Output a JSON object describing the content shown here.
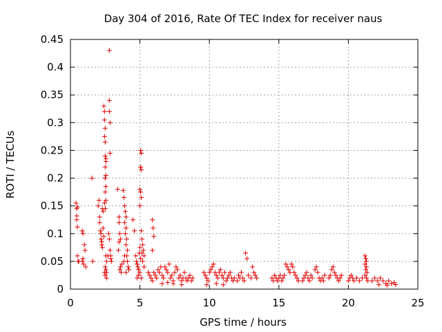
{
  "chart_data": {
    "type": "scatter",
    "title": "Day 304 of 2016, Rate Of TEC Index for receiver naus",
    "xlabel": "GPS time / hours",
    "ylabel": "ROTI / TECUs",
    "xlim": [
      0,
      25
    ],
    "ylim": [
      0,
      0.45
    ],
    "xticks": [
      0,
      5,
      10,
      15,
      20,
      25
    ],
    "yticks": [
      0,
      0.05,
      0.1,
      0.15,
      0.2,
      0.25,
      0.3,
      0.35,
      0.4,
      0.45
    ],
    "grid": true,
    "marker": "plus",
    "color": "#e00000",
    "series": [
      {
        "name": "ROTI",
        "points": [
          [
            0.4,
            0.155
          ],
          [
            0.45,
            0.145
          ],
          [
            0.45,
            0.125
          ],
          [
            0.5,
            0.112
          ],
          [
            0.5,
            0.06
          ],
          [
            0.55,
            0.05
          ],
          [
            0.6,
            0.05
          ],
          [
            0.5,
            0.148
          ],
          [
            0.45,
            0.132
          ],
          [
            0.85,
            0.105
          ],
          [
            0.9,
            0.1
          ],
          [
            1.0,
            0.08
          ],
          [
            1.05,
            0.07
          ],
          [
            0.9,
            0.055
          ],
          [
            0.95,
            0.045
          ],
          [
            1.1,
            0.04
          ],
          [
            0.85,
            0.05
          ],
          [
            1.55,
            0.2
          ],
          [
            1.6,
            0.05
          ],
          [
            2.0,
            0.15
          ],
          [
            2.05,
            0.16
          ],
          [
            2.1,
            0.13
          ],
          [
            2.1,
            0.12
          ],
          [
            2.15,
            0.105
          ],
          [
            2.2,
            0.1
          ],
          [
            2.2,
            0.09
          ],
          [
            2.25,
            0.085
          ],
          [
            2.25,
            0.08
          ],
          [
            2.3,
            0.075
          ],
          [
            2.3,
            0.145
          ],
          [
            2.35,
            0.14
          ],
          [
            2.35,
            0.11
          ],
          [
            2.4,
            0.095
          ],
          [
            2.4,
            0.33
          ],
          [
            2.45,
            0.32
          ],
          [
            2.45,
            0.305
          ],
          [
            2.5,
            0.29
          ],
          [
            2.45,
            0.275
          ],
          [
            2.5,
            0.265
          ],
          [
            2.5,
            0.24
          ],
          [
            2.55,
            0.235
          ],
          [
            2.55,
            0.23
          ],
          [
            2.5,
            0.22
          ],
          [
            2.55,
            0.205
          ],
          [
            2.5,
            0.2
          ],
          [
            2.55,
            0.185
          ],
          [
            2.5,
            0.175
          ],
          [
            2.55,
            0.16
          ],
          [
            2.45,
            0.155
          ],
          [
            2.5,
            0.145
          ],
          [
            2.5,
            0.04
          ],
          [
            2.55,
            0.035
          ],
          [
            2.6,
            0.03
          ],
          [
            2.5,
            0.025
          ],
          [
            2.6,
            0.02
          ],
          [
            2.45,
            0.03
          ],
          [
            2.55,
            0.06
          ],
          [
            2.6,
            0.05
          ],
          [
            2.8,
            0.43
          ],
          [
            2.8,
            0.34
          ],
          [
            2.8,
            0.32
          ],
          [
            2.85,
            0.3
          ],
          [
            2.85,
            0.245
          ],
          [
            2.8,
            0.09
          ],
          [
            2.85,
            0.07
          ],
          [
            2.9,
            0.06
          ],
          [
            2.9,
            0.055
          ],
          [
            2.95,
            0.05
          ],
          [
            2.7,
            0.06
          ],
          [
            2.75,
            0.1
          ],
          [
            3.4,
            0.18
          ],
          [
            3.5,
            0.13
          ],
          [
            3.5,
            0.12
          ],
          [
            3.55,
            0.1
          ],
          [
            3.6,
            0.09
          ],
          [
            3.5,
            0.085
          ],
          [
            3.45,
            0.07
          ],
          [
            3.6,
            0.04
          ],
          [
            3.55,
            0.035
          ],
          [
            3.7,
            0.045
          ],
          [
            3.65,
            0.03
          ],
          [
            3.8,
            0.178
          ],
          [
            3.85,
            0.165
          ],
          [
            3.9,
            0.15
          ],
          [
            3.95,
            0.14
          ],
          [
            4.0,
            0.13
          ],
          [
            3.9,
            0.12
          ],
          [
            4.0,
            0.11
          ],
          [
            3.95,
            0.1
          ],
          [
            4.05,
            0.09
          ],
          [
            4.0,
            0.08
          ],
          [
            4.1,
            0.07
          ],
          [
            4.05,
            0.06
          ],
          [
            4.1,
            0.05
          ],
          [
            4.15,
            0.04
          ],
          [
            4.2,
            0.035
          ],
          [
            4.0,
            0.03
          ],
          [
            3.85,
            0.05
          ],
          [
            3.9,
            0.06
          ],
          [
            4.5,
            0.125
          ],
          [
            4.6,
            0.105
          ],
          [
            4.7,
            0.06
          ],
          [
            4.75,
            0.05
          ],
          [
            4.8,
            0.045
          ],
          [
            4.85,
            0.04
          ],
          [
            4.9,
            0.035
          ],
          [
            5.0,
            0.03
          ],
          [
            4.95,
            0.065
          ],
          [
            5.0,
            0.075
          ],
          [
            5.05,
            0.055
          ],
          [
            4.9,
            0.025
          ],
          [
            4.8,
            0.02
          ],
          [
            5.1,
            0.02
          ],
          [
            5.05,
            0.25
          ],
          [
            5.1,
            0.245
          ],
          [
            5.05,
            0.22
          ],
          [
            5.1,
            0.215
          ],
          [
            5.0,
            0.18
          ],
          [
            5.05,
            0.175
          ],
          [
            5.1,
            0.165
          ],
          [
            5.0,
            0.15
          ],
          [
            5.1,
            0.105
          ],
          [
            5.15,
            0.09
          ],
          [
            5.2,
            0.08
          ],
          [
            5.25,
            0.07
          ],
          [
            5.3,
            0.06
          ],
          [
            5.2,
            0.05
          ],
          [
            5.3,
            0.04
          ],
          [
            5.15,
            0.065
          ],
          [
            5.9,
            0.125
          ],
          [
            5.95,
            0.11
          ],
          [
            6.0,
            0.095
          ],
          [
            5.9,
            0.07
          ],
          [
            5.6,
            0.03
          ],
          [
            5.7,
            0.025
          ],
          [
            5.8,
            0.02
          ],
          [
            5.9,
            0.015
          ],
          [
            6.0,
            0.03
          ],
          [
            6.1,
            0.025
          ],
          [
            6.2,
            0.02
          ],
          [
            6.3,
            0.035
          ],
          [
            6.4,
            0.03
          ],
          [
            6.5,
            0.04
          ],
          [
            6.6,
            0.025
          ],
          [
            6.7,
            0.02
          ],
          [
            6.8,
            0.04
          ],
          [
            6.9,
            0.035
          ],
          [
            7.0,
            0.03
          ],
          [
            7.1,
            0.045
          ],
          [
            7.2,
            0.02
          ],
          [
            7.3,
            0.025
          ],
          [
            7.4,
            0.015
          ],
          [
            7.5,
            0.03
          ],
          [
            7.6,
            0.04
          ],
          [
            7.7,
            0.035
          ],
          [
            7.8,
            0.02
          ],
          [
            7.9,
            0.025
          ],
          [
            8.0,
            0.015
          ],
          [
            8.1,
            0.02
          ],
          [
            8.2,
            0.03
          ],
          [
            8.3,
            0.02
          ],
          [
            8.4,
            0.015
          ],
          [
            8.5,
            0.02
          ],
          [
            8.6,
            0.025
          ],
          [
            8.7,
            0.015
          ],
          [
            8.8,
            0.02
          ],
          [
            6.6,
            0.01
          ],
          [
            7.0,
            0.012
          ],
          [
            7.4,
            0.01
          ],
          [
            8.0,
            0.008
          ],
          [
            9.6,
            0.03
          ],
          [
            9.7,
            0.025
          ],
          [
            9.8,
            0.02
          ],
          [
            9.9,
            0.015
          ],
          [
            10.0,
            0.03
          ],
          [
            10.1,
            0.035
          ],
          [
            10.2,
            0.04
          ],
          [
            10.3,
            0.045
          ],
          [
            10.4,
            0.03
          ],
          [
            10.5,
            0.025
          ],
          [
            10.6,
            0.02
          ],
          [
            10.7,
            0.03
          ],
          [
            10.8,
            0.035
          ],
          [
            10.9,
            0.025
          ],
          [
            11.0,
            0.02
          ],
          [
            11.1,
            0.03
          ],
          [
            11.2,
            0.015
          ],
          [
            11.3,
            0.02
          ],
          [
            11.4,
            0.025
          ],
          [
            11.5,
            0.03
          ],
          [
            11.6,
            0.02
          ],
          [
            11.7,
            0.015
          ],
          [
            11.8,
            0.02
          ],
          [
            12.0,
            0.015
          ],
          [
            12.1,
            0.025
          ],
          [
            12.2,
            0.02
          ],
          [
            12.3,
            0.03
          ],
          [
            12.4,
            0.02
          ],
          [
            12.5,
            0.015
          ],
          [
            12.6,
            0.065
          ],
          [
            12.7,
            0.055
          ],
          [
            12.8,
            0.025
          ],
          [
            13.0,
            0.02
          ],
          [
            13.1,
            0.04
          ],
          [
            13.2,
            0.03
          ],
          [
            13.3,
            0.025
          ],
          [
            13.4,
            0.02
          ],
          [
            9.8,
            0.008
          ],
          [
            10.5,
            0.01
          ],
          [
            11.0,
            0.008
          ],
          [
            14.5,
            0.02
          ],
          [
            14.6,
            0.015
          ],
          [
            14.7,
            0.025
          ],
          [
            14.8,
            0.02
          ],
          [
            14.9,
            0.015
          ],
          [
            15.0,
            0.02
          ],
          [
            15.1,
            0.025
          ],
          [
            15.2,
            0.015
          ],
          [
            15.3,
            0.02
          ],
          [
            15.4,
            0.025
          ],
          [
            15.5,
            0.045
          ],
          [
            15.6,
            0.04
          ],
          [
            15.7,
            0.035
          ],
          [
            15.8,
            0.03
          ],
          [
            15.9,
            0.045
          ],
          [
            16.0,
            0.04
          ],
          [
            16.1,
            0.03
          ],
          [
            16.2,
            0.025
          ],
          [
            16.3,
            0.02
          ],
          [
            16.4,
            0.015
          ],
          [
            16.7,
            0.015
          ],
          [
            16.8,
            0.02
          ],
          [
            16.9,
            0.025
          ],
          [
            17.0,
            0.03
          ],
          [
            17.1,
            0.02
          ],
          [
            17.2,
            0.015
          ],
          [
            17.3,
            0.025
          ],
          [
            17.4,
            0.02
          ],
          [
            17.6,
            0.035
          ],
          [
            17.7,
            0.04
          ],
          [
            17.8,
            0.03
          ],
          [
            17.9,
            0.02
          ],
          [
            18.0,
            0.015
          ],
          [
            18.1,
            0.02
          ],
          [
            18.2,
            0.015
          ],
          [
            18.3,
            0.025
          ],
          [
            18.6,
            0.02
          ],
          [
            18.7,
            0.025
          ],
          [
            18.8,
            0.035
          ],
          [
            18.9,
            0.04
          ],
          [
            19.0,
            0.03
          ],
          [
            19.1,
            0.025
          ],
          [
            19.2,
            0.02
          ],
          [
            19.3,
            0.015
          ],
          [
            19.4,
            0.02
          ],
          [
            19.5,
            0.025
          ],
          [
            20.0,
            0.015
          ],
          [
            20.1,
            0.02
          ],
          [
            20.2,
            0.025
          ],
          [
            20.3,
            0.02
          ],
          [
            20.4,
            0.015
          ],
          [
            20.6,
            0.02
          ],
          [
            20.8,
            0.015
          ],
          [
            21.0,
            0.02
          ],
          [
            21.2,
            0.06
          ],
          [
            21.25,
            0.055
          ],
          [
            21.3,
            0.05
          ],
          [
            21.2,
            0.045
          ],
          [
            21.3,
            0.04
          ],
          [
            21.25,
            0.035
          ],
          [
            21.35,
            0.03
          ],
          [
            21.2,
            0.025
          ],
          [
            21.3,
            0.02
          ],
          [
            21.4,
            0.015
          ],
          [
            21.7,
            0.015
          ],
          [
            21.9,
            0.02
          ],
          [
            22.1,
            0.015
          ],
          [
            22.3,
            0.02
          ],
          [
            22.5,
            0.015
          ],
          [
            22.7,
            0.01
          ],
          [
            22.9,
            0.015
          ],
          [
            23.1,
            0.01
          ],
          [
            23.3,
            0.012
          ],
          [
            23.4,
            0.008
          ],
          [
            22.2,
            0.008
          ],
          [
            22.8,
            0.007
          ]
        ]
      }
    ]
  }
}
